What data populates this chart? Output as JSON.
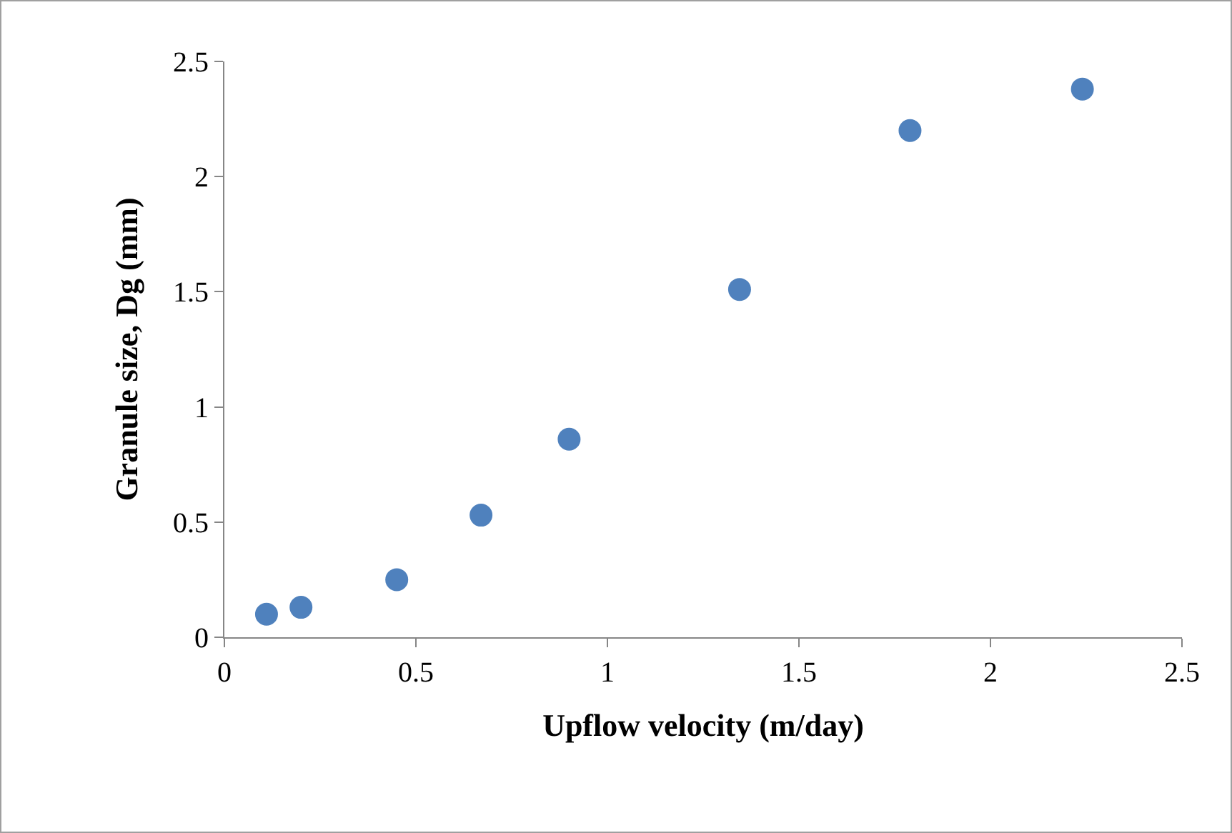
{
  "chart_data": {
    "type": "scatter",
    "xlabel": "Upflow velocity (m/day)",
    "ylabel": "Granule size, Dg (mm)",
    "x": [
      0.11,
      0.2,
      0.45,
      0.67,
      0.9,
      1.345,
      1.79,
      2.24
    ],
    "series": [
      {
        "color": "#4f81bd",
        "values": [
          0.1,
          0.13,
          0.25,
          0.53,
          0.86,
          1.51,
          2.2,
          2.38
        ]
      }
    ],
    "xlim": [
      0,
      2.5
    ],
    "xticks": [
      0,
      0.5,
      1,
      1.5,
      2,
      2.5
    ],
    "ylim": [
      0,
      2.5
    ],
    "yticks": [
      0,
      0.5,
      1,
      1.5,
      2,
      2.5
    ],
    "marker": "circle"
  }
}
